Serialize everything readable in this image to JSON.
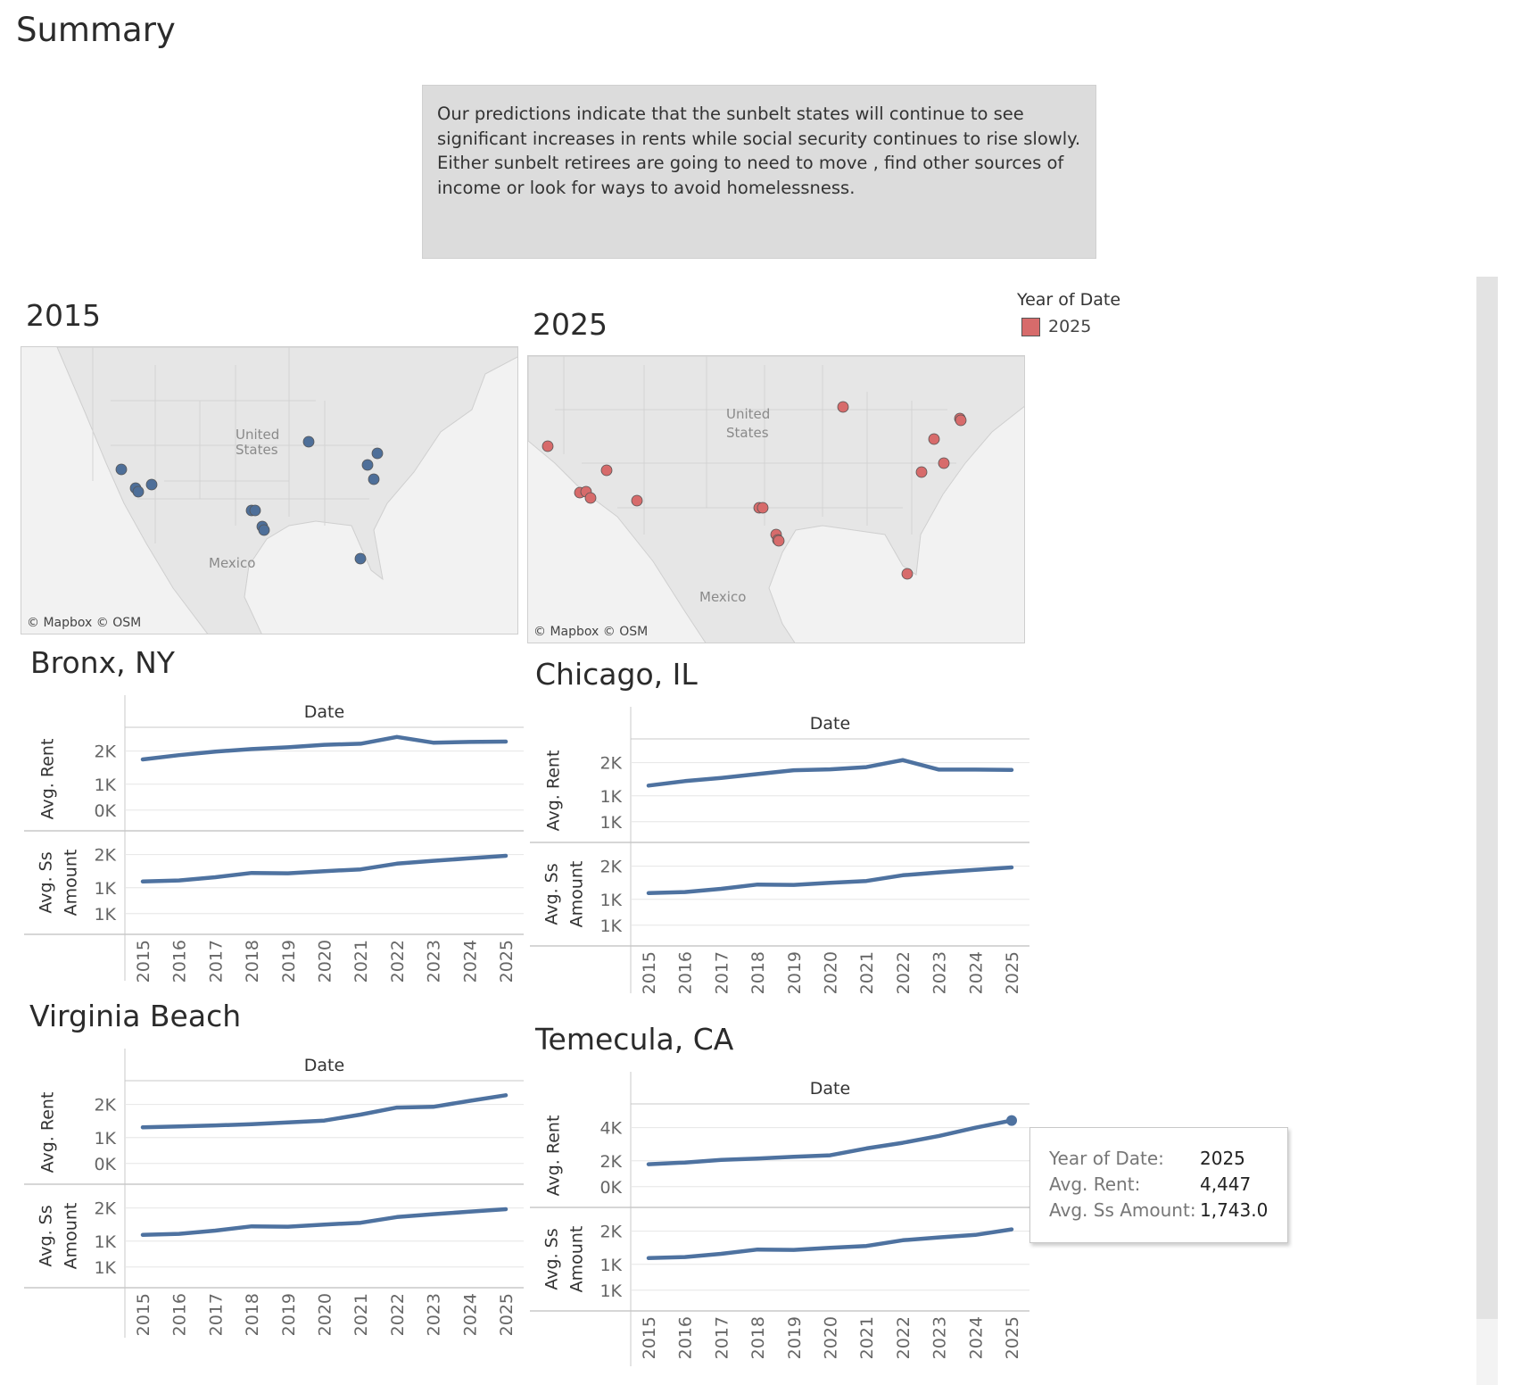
{
  "dashboard": {
    "title": "Summary",
    "summary_text": "Our predictions indicate that the sunbelt states will continue to see significant increases in rents while social security continues to rise slowly. Either sunbelt retirees are going to need to move , find other sources of income or look for ways to avoid homelessness."
  },
  "maps": [
    {
      "title": "2015",
      "credit": "© Mapbox  © OSM",
      "labels": [
        "United\nStates",
        "Mexico"
      ],
      "dot_color": "#4e6f99"
    },
    {
      "title": "2025",
      "credit": "© Mapbox  © OSM",
      "labels": [
        "United\nStates",
        "Mexico"
      ],
      "dot_color": "#d76b6b"
    }
  ],
  "legend": {
    "title": "Year of Date",
    "items": [
      {
        "label": "2025",
        "color": "#d76b6b"
      }
    ]
  },
  "tooltip": {
    "rows": [
      {
        "label": "Year of Date:",
        "value": "2025"
      },
      {
        "label": "Avg. Rent:",
        "value": "4,447"
      },
      {
        "label": "Avg. Ss Amount:",
        "value": "1,743.0"
      }
    ]
  },
  "colors": {
    "line": "#4e72a0",
    "grid": "#e6e6e6",
    "axis": "#c8c8c8",
    "map_land": "#e6e6e6",
    "map_water": "#f2f2f2"
  },
  "chart_data": [
    {
      "type": "line",
      "title": "Bronx, NY",
      "xlabel": "Date",
      "x": [
        "2015",
        "2016",
        "2017",
        "2018",
        "2019",
        "2020",
        "2021",
        "2022",
        "2023",
        "2024",
        "2025"
      ],
      "panels": [
        {
          "ylabel": "Avg. Rent",
          "ticks": [
            "2K",
            "1K",
            "0K"
          ],
          "ylim": [
            0,
            2500
          ],
          "values": [
            1800,
            1920,
            2020,
            2090,
            2140,
            2210,
            2240,
            2430,
            2270,
            2290,
            2300
          ]
        },
        {
          "ylabel": "Avg. Ss\nAmount",
          "ticks": [
            "2K",
            "1K",
            "1K"
          ],
          "ylim": [
            700,
            1950
          ],
          "values": [
            1340,
            1355,
            1400,
            1460,
            1455,
            1485,
            1510,
            1590,
            1630,
            1665,
            1700
          ]
        }
      ]
    },
    {
      "type": "line",
      "title": "Chicago, IL",
      "xlabel": "Date",
      "x": [
        "2015",
        "2016",
        "2017",
        "2018",
        "2019",
        "2020",
        "2021",
        "2022",
        "2023",
        "2024",
        "2025"
      ],
      "panels": [
        {
          "ylabel": "Avg. Rent",
          "ticks": [
            "2K",
            "1K",
            "1K"
          ],
          "ylim": [
            700,
            2100
          ],
          "values": [
            1480,
            1550,
            1600,
            1660,
            1720,
            1735,
            1770,
            1880,
            1730,
            1730,
            1725
          ]
        },
        {
          "ylabel": "Avg. Ss\nAmount",
          "ticks": [
            "2K",
            "1K",
            "1K"
          ],
          "ylim": [
            700,
            1950
          ],
          "values": [
            1340,
            1355,
            1400,
            1460,
            1455,
            1485,
            1510,
            1590,
            1630,
            1665,
            1700
          ]
        }
      ]
    },
    {
      "type": "line",
      "title": "Virginia Beach",
      "xlabel": "Date",
      "x": [
        "2015",
        "2016",
        "2017",
        "2018",
        "2019",
        "2020",
        "2021",
        "2022",
        "2023",
        "2024",
        "2025"
      ],
      "panels": [
        {
          "ylabel": "Avg. Rent",
          "ticks": [
            "2K",
            "1K",
            "0K"
          ],
          "ylim": [
            0,
            2400
          ],
          "values": [
            1340,
            1360,
            1390,
            1420,
            1470,
            1520,
            1680,
            1870,
            1890,
            2050,
            2200
          ]
        },
        {
          "ylabel": "Avg. Ss\nAmount",
          "ticks": [
            "2K",
            "1K",
            "1K"
          ],
          "ylim": [
            700,
            1950
          ],
          "values": [
            1340,
            1355,
            1400,
            1460,
            1455,
            1485,
            1510,
            1590,
            1630,
            1665,
            1700
          ]
        }
      ]
    },
    {
      "type": "line",
      "title": "Temecula, CA",
      "xlabel": "Date",
      "x": [
        "2015",
        "2016",
        "2017",
        "2018",
        "2019",
        "2020",
        "2021",
        "2022",
        "2023",
        "2024",
        "2025"
      ],
      "panels": [
        {
          "ylabel": "Avg. Rent",
          "ticks": [
            "4K",
            "2K",
            "0K"
          ],
          "ylim": [
            -200,
            5000
          ],
          "values": [
            1900,
            2000,
            2150,
            2230,
            2330,
            2420,
            2820,
            3150,
            3550,
            4030,
            4447
          ],
          "highlight_index": 10
        },
        {
          "ylabel": "Avg. Ss\nAmount",
          "ticks": [
            "2K",
            "1K",
            "1K"
          ],
          "ylim": [
            700,
            1950
          ],
          "values": [
            1340,
            1355,
            1400,
            1460,
            1455,
            1485,
            1510,
            1590,
            1630,
            1665,
            1743
          ]
        }
      ]
    }
  ]
}
